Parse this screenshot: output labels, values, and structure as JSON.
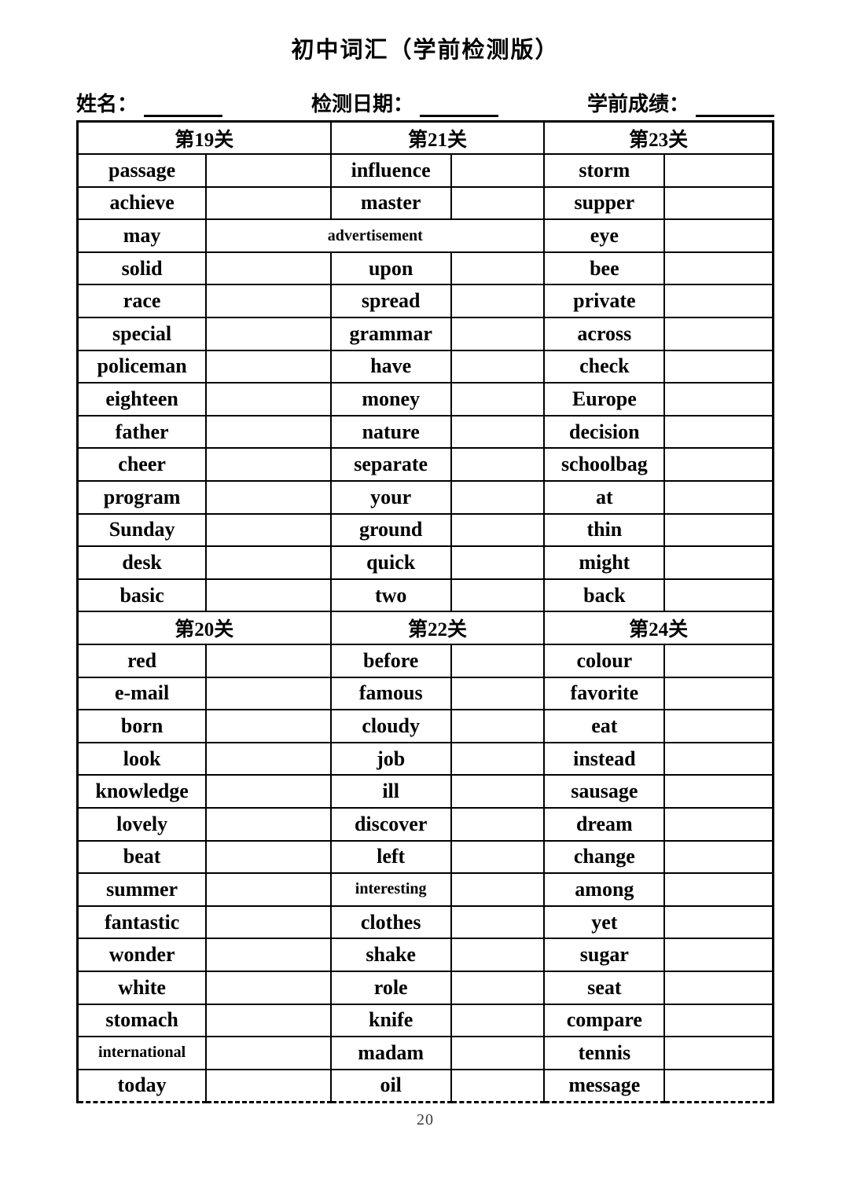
{
  "page": {
    "title": "初中词汇（学前检测版）",
    "page_number": "20"
  },
  "info_line": {
    "fields": [
      {
        "label": "姓名：",
        "value": ""
      },
      {
        "label": "检测日期：",
        "value": ""
      },
      {
        "label": "学前成绩：",
        "value": ""
      }
    ]
  },
  "table": {
    "columns_note": "each level has a word column and a blank answer column",
    "blocks": [
      {
        "headers": [
          "第19关",
          "第21关",
          "第23关"
        ],
        "rows": [
          {
            "words": [
              "passage",
              "influence",
              "storm"
            ]
          },
          {
            "words": [
              "achieve",
              "master",
              "supper"
            ]
          },
          {
            "words": [
              "may",
              "advertisement",
              "eye"
            ],
            "merge_center": true,
            "small_indexes": [
              1
            ]
          },
          {
            "words": [
              "solid",
              "upon",
              "bee"
            ]
          },
          {
            "words": [
              "race",
              "spread",
              "private"
            ]
          },
          {
            "words": [
              "special",
              "grammar",
              "across"
            ]
          },
          {
            "words": [
              "policeman",
              "have",
              "check"
            ]
          },
          {
            "words": [
              "eighteen",
              "money",
              "Europe"
            ]
          },
          {
            "words": [
              "father",
              "nature",
              "decision"
            ]
          },
          {
            "words": [
              "cheer",
              "separate",
              "schoolbag"
            ]
          },
          {
            "words": [
              "program",
              "your",
              "at"
            ]
          },
          {
            "words": [
              "Sunday",
              "ground",
              "thin"
            ]
          },
          {
            "words": [
              "desk",
              "quick",
              "might"
            ]
          },
          {
            "words": [
              "basic",
              "two",
              "back"
            ]
          }
        ]
      },
      {
        "headers": [
          "第20关",
          "第22关",
          "第24关"
        ],
        "rows": [
          {
            "words": [
              "red",
              "before",
              "colour"
            ]
          },
          {
            "words": [
              "e-mail",
              "famous",
              "favorite"
            ]
          },
          {
            "words": [
              "born",
              "cloudy",
              "eat"
            ]
          },
          {
            "words": [
              "look",
              "job",
              "instead"
            ]
          },
          {
            "words": [
              "knowledge",
              "ill",
              "sausage"
            ]
          },
          {
            "words": [
              "lovely",
              "discover",
              "dream"
            ]
          },
          {
            "words": [
              "beat",
              "left",
              "change"
            ]
          },
          {
            "words": [
              "summer",
              "interesting",
              "among"
            ],
            "small_indexes": [
              1
            ]
          },
          {
            "words": [
              "fantastic",
              "clothes",
              "yet"
            ]
          },
          {
            "words": [
              "wonder",
              "shake",
              "sugar"
            ]
          },
          {
            "words": [
              "white",
              "role",
              "seat"
            ]
          },
          {
            "words": [
              "stomach",
              "knife",
              "compare"
            ]
          },
          {
            "words": [
              "international",
              "madam",
              "tennis"
            ],
            "small_indexes": [
              0
            ]
          },
          {
            "words": [
              "today",
              "oil",
              "message"
            ]
          }
        ]
      }
    ]
  }
}
